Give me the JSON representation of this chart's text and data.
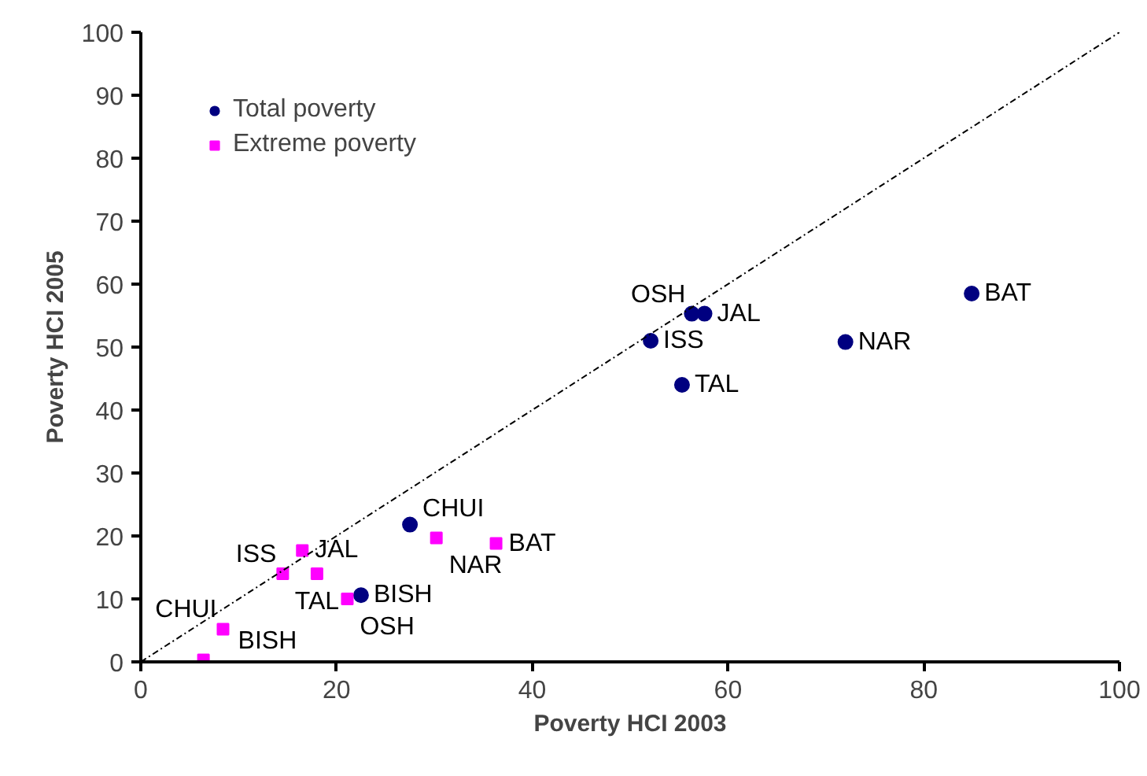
{
  "chart_data": {
    "type": "scatter",
    "xlabel": "Poverty HCI 2003",
    "ylabel": "Poverty HCI 2005",
    "xlim": [
      0,
      100
    ],
    "ylim": [
      0,
      100
    ],
    "xticks": [
      0,
      20,
      40,
      60,
      80,
      100
    ],
    "yticks": [
      0,
      10,
      20,
      30,
      40,
      50,
      60,
      70,
      80,
      90,
      100
    ],
    "grid": false,
    "legend": "top left",
    "series": [
      {
        "name": "Total poverty",
        "color": "#000080",
        "marker": "circle",
        "x": [
          84.9,
          72.0,
          57.6,
          56.3,
          52.1,
          55.3,
          27.5,
          22.5
        ],
        "values": [
          58.5,
          50.8,
          55.3,
          55.3,
          51.0,
          44.0,
          21.8,
          10.6
        ]
      },
      {
        "name": "Extreme poverty",
        "color": "#ff00ff",
        "marker": "square",
        "x": [
          30.2,
          36.3,
          16.5,
          18.0,
          14.5,
          21.1,
          8.4,
          6.4
        ],
        "values": [
          19.7,
          18.8,
          17.7,
          14.0,
          14.0,
          10.0,
          5.2,
          0.3
        ]
      },
      {
        "type": "line",
        "color": "#000000",
        "line_style": "dashdot",
        "marker": "none",
        "x": [
          0,
          100
        ],
        "values": [
          0,
          100
        ]
      }
    ],
    "annotations": [
      {
        "text": "BAT",
        "x": 84.9,
        "y": 58.5
      },
      {
        "text": "NAR",
        "x": 72.0,
        "y": 50.8
      },
      {
        "text": "JAL",
        "x": 57.6,
        "y": 55.3
      },
      {
        "text": "OSH",
        "x": 56.3,
        "y": 55.3
      },
      {
        "text": "ISS",
        "x": 52.1,
        "y": 51.0
      },
      {
        "text": "TAL",
        "x": 55.3,
        "y": 44.0
      },
      {
        "text": "CHUI",
        "x": 27.5,
        "y": 21.8
      },
      {
        "text": "BISH",
        "x": 22.5,
        "y": 10.6
      },
      {
        "text": "NAR",
        "x": 30.2,
        "y": 19.7
      },
      {
        "text": "BAT",
        "x": 36.3,
        "y": 18.8
      },
      {
        "text": "JAL",
        "x": 16.5,
        "y": 17.7
      },
      {
        "text": "TAL",
        "x": 18.0,
        "y": 14.0
      },
      {
        "text": "ISS",
        "x": 14.5,
        "y": 14.0
      },
      {
        "text": "OSH",
        "x": 21.1,
        "y": 10.0
      },
      {
        "text": "BISH",
        "x": 6.4,
        "y": 0.3
      },
      {
        "text": "CHUI",
        "x": 8.4,
        "y": 5.2
      }
    ]
  }
}
